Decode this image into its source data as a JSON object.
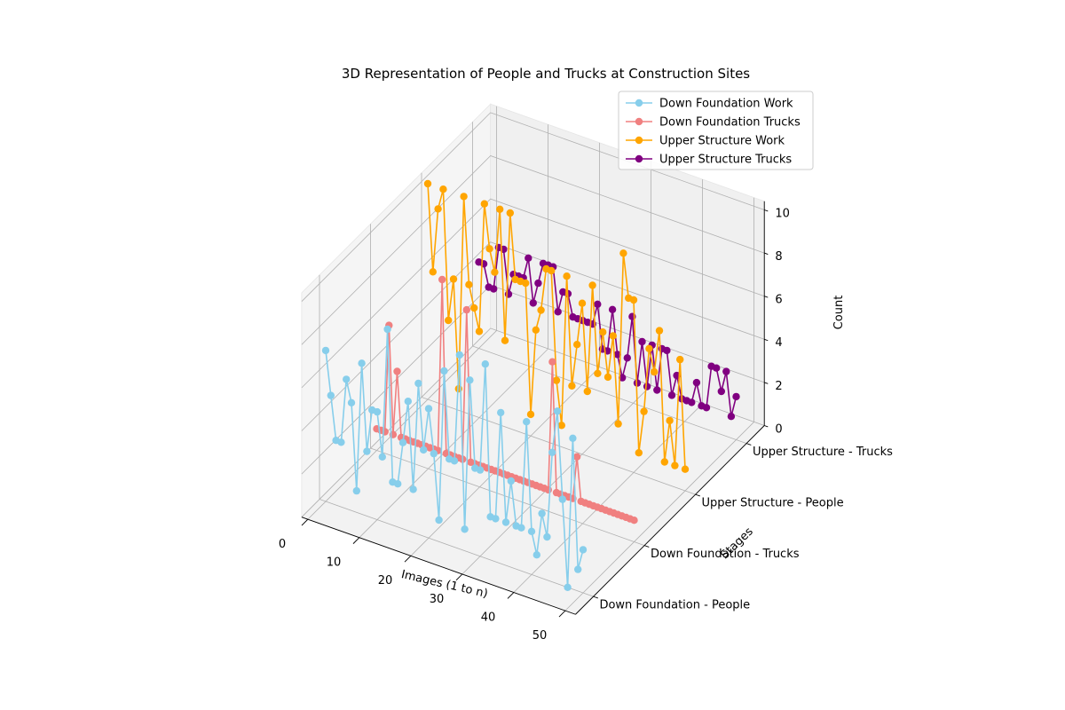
{
  "chart_data": {
    "type": "line",
    "title": "3D Representation of People and Trucks at Construction Sites",
    "xlabel": "Images (1 to n)",
    "ylabel": "Stages",
    "zlabel": "Count",
    "xlim": [
      0,
      50
    ],
    "zlim": [
      0,
      10
    ],
    "x_ticks": [
      0,
      10,
      20,
      30,
      40,
      50
    ],
    "z_ticks": [
      0,
      2,
      4,
      6,
      8,
      10
    ],
    "stages": [
      "Down Foundation - People",
      "Down Foundation - Trucks",
      "Upper Structure - People",
      "Upper Structure - Trucks"
    ],
    "grid": true,
    "legend_position": "top-right",
    "series": [
      {
        "name": "Down Foundation Work",
        "color": "#87ceeb",
        "stage": 0,
        "values": [
          7,
          5,
          3,
          3,
          6,
          5,
          1,
          7,
          3,
          5,
          5,
          3,
          9,
          2,
          2,
          4,
          6,
          2,
          7,
          4,
          6,
          4,
          1,
          8,
          4,
          4,
          9,
          1,
          8,
          4,
          4,
          9,
          2,
          2,
          7,
          2,
          4,
          2,
          2,
          7,
          2,
          1,
          3,
          2,
          6,
          8,
          4,
          0,
          7,
          1,
          2
        ]
      },
      {
        "name": "Down Foundation Trucks",
        "color": "#f08080",
        "stage": 1,
        "values": [
          1,
          1,
          1,
          6,
          1,
          4,
          1,
          1,
          1,
          1,
          1,
          1,
          1,
          1,
          1,
          1,
          9,
          1,
          1,
          1,
          1,
          1,
          8,
          1,
          1,
          1,
          1,
          1,
          1,
          1,
          1,
          1,
          1,
          1,
          1,
          1,
          1,
          1,
          1,
          1,
          1,
          1,
          1,
          7,
          1,
          1,
          1,
          1,
          1,
          3,
          1,
          1,
          1,
          1,
          1,
          1,
          1,
          1,
          1,
          1,
          1,
          1,
          1,
          1
        ]
      },
      {
        "name": "Upper Structure Work",
        "color": "#ffa500",
        "stage": 2,
        "values": [
          10,
          6,
          9,
          10,
          4,
          6,
          1,
          10,
          6,
          5,
          4,
          10,
          8,
          7,
          10,
          4,
          10,
          7,
          7,
          7,
          1,
          5,
          6,
          8,
          8,
          3,
          1,
          8,
          3,
          5,
          7,
          3,
          8,
          4,
          6,
          4,
          6,
          2,
          10,
          8,
          8,
          1,
          3,
          6,
          5,
          7,
          1,
          3,
          1,
          6,
          1
        ]
      },
      {
        "name": "Upper Structure Trucks",
        "color": "#800080",
        "stage": 3,
        "values": [
          4,
          4,
          3,
          3,
          5,
          5,
          3,
          4,
          4,
          4,
          5,
          3,
          4,
          5,
          5,
          5,
          3,
          4,
          4,
          3,
          3,
          3,
          3,
          3,
          4,
          2,
          2,
          4,
          2,
          1,
          2,
          4,
          1,
          3,
          1,
          3,
          1,
          3,
          3,
          1,
          2,
          1,
          1,
          1,
          2,
          1,
          1,
          3,
          3,
          2,
          3,
          1,
          2
        ]
      }
    ]
  }
}
